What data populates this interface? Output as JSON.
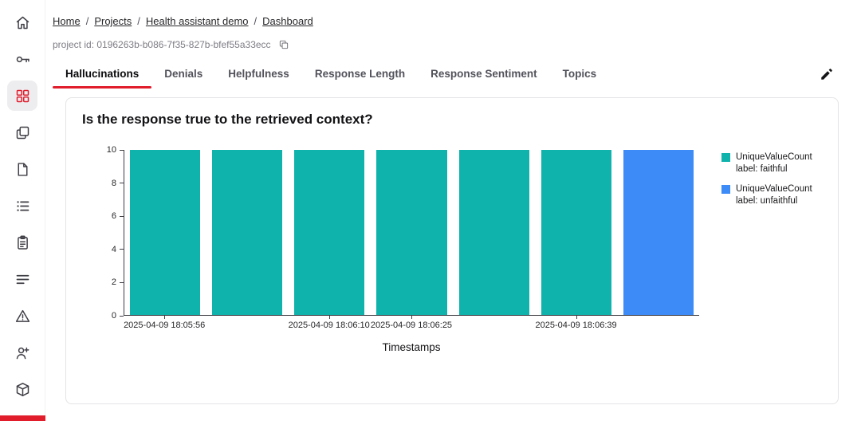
{
  "accent_color": "#e11d2c",
  "sidebar": {
    "items": [
      {
        "icon": "home-icon",
        "active": false
      },
      {
        "icon": "key-icon",
        "active": false
      },
      {
        "icon": "dashboard-grid-icon",
        "active": true
      },
      {
        "icon": "windows-stack-icon",
        "active": false
      },
      {
        "icon": "document-icon",
        "active": false
      },
      {
        "icon": "list-icon",
        "active": false
      },
      {
        "icon": "clipboard-icon",
        "active": false
      },
      {
        "icon": "text-lines-icon",
        "active": false
      },
      {
        "icon": "warning-icon",
        "active": false
      },
      {
        "icon": "person-add-icon",
        "active": false
      },
      {
        "icon": "package-icon",
        "active": false
      }
    ]
  },
  "breadcrumb": {
    "separator": "/",
    "items": [
      "Home",
      "Projects",
      "Health assistant demo",
      "Dashboard"
    ]
  },
  "project": {
    "id_text": "project id: 0196263b-b086-7f35-827b-bfef55a33ecc",
    "copy_icon": "copy-icon"
  },
  "tabs": [
    {
      "label": "Hallucinations",
      "active": true
    },
    {
      "label": "Denials",
      "active": false
    },
    {
      "label": "Helpfulness",
      "active": false
    },
    {
      "label": "Response Length",
      "active": false
    },
    {
      "label": "Response Sentiment",
      "active": false
    },
    {
      "label": "Topics",
      "active": false
    }
  ],
  "toolbar": {
    "edit_icon": "pencil-icon"
  },
  "chart_data": {
    "type": "bar",
    "title": "Is the response true to the retrieved context?",
    "xlabel": "Timestamps",
    "ylabel": "",
    "ylim": [
      0,
      10
    ],
    "yticks": [
      0,
      2,
      4,
      6,
      8,
      10
    ],
    "grid": false,
    "legend_position": "right",
    "bars": [
      {
        "x_index": 0,
        "value": 10,
        "series": "faithful"
      },
      {
        "x_index": 1,
        "value": 10,
        "series": "faithful"
      },
      {
        "x_index": 2,
        "value": 10,
        "series": "faithful"
      },
      {
        "x_index": 3,
        "value": 10,
        "series": "faithful"
      },
      {
        "x_index": 4,
        "value": 10,
        "series": "faithful"
      },
      {
        "x_index": 5,
        "value": 10,
        "series": "faithful"
      },
      {
        "x_index": 6,
        "value": 10,
        "series": "unfaithful"
      }
    ],
    "x_ticks": [
      {
        "slot": 0,
        "label": "2025-04-09 18:05:56"
      },
      {
        "slot": 2,
        "label": "2025-04-09 18:06:10"
      },
      {
        "slot": 3,
        "label": "2025-04-09 18:06:25"
      },
      {
        "slot": 5,
        "label": "2025-04-09 18:06:39"
      }
    ],
    "series": [
      {
        "name": "faithful",
        "legend_line1": "UniqueValueCount",
        "legend_line2": "label: faithful",
        "color": "#10b3ac"
      },
      {
        "name": "unfaithful",
        "legend_line1": "UniqueValueCount",
        "legend_line2": "label: unfaithful",
        "color": "#3d8bf7"
      }
    ]
  }
}
